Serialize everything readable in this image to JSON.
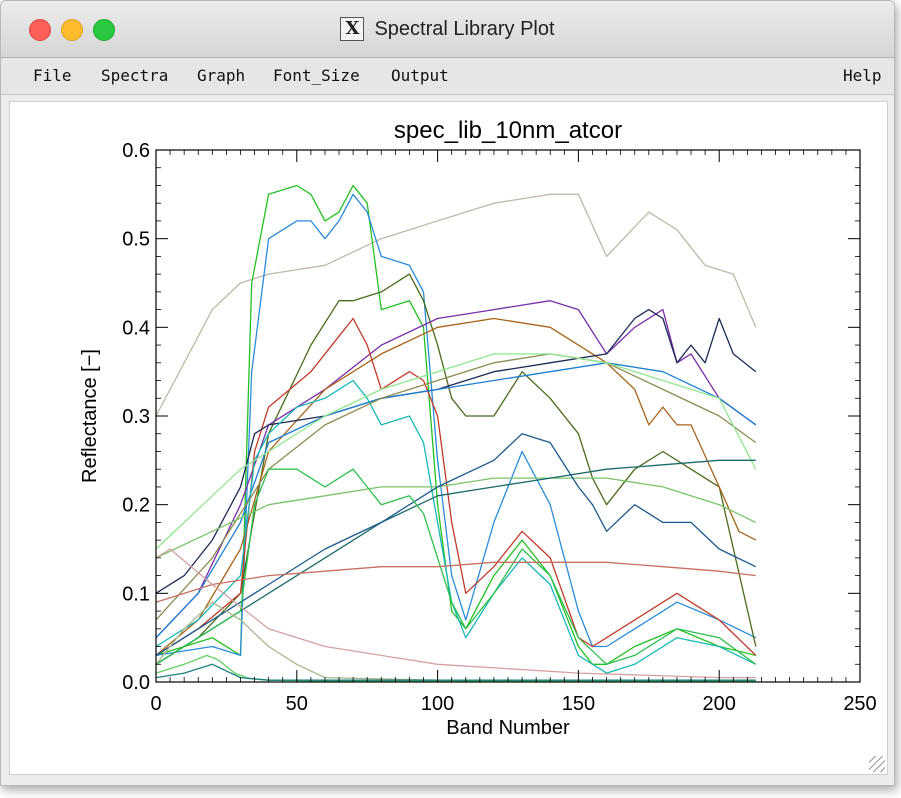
{
  "window": {
    "title": "Spectral Library Plot",
    "app_icon": "x11-icon"
  },
  "menu": {
    "file": "File",
    "spectra": "Spectra",
    "graph": "Graph",
    "font_size": "Font_Size",
    "output": "Output",
    "help": "Help"
  },
  "chart_data": {
    "type": "line",
    "title": "spec_lib_10nm_atcor",
    "xlabel": "Band Number",
    "ylabel": "Reflectance [−]",
    "xlim": [
      0,
      250
    ],
    "ylim": [
      0.0,
      0.6
    ],
    "x_ticks": [
      "0",
      "50",
      "100",
      "150",
      "200",
      "250"
    ],
    "y_ticks": [
      "0.0",
      "0.1",
      "0.2",
      "0.3",
      "0.4",
      "0.5",
      "0.6"
    ],
    "x_tick_values": [
      0,
      50,
      100,
      150,
      200,
      250
    ],
    "y_tick_values": [
      0.0,
      0.1,
      0.2,
      0.3,
      0.4,
      0.5,
      0.6
    ],
    "grid": false,
    "legend": "none",
    "series": [
      {
        "color": "#bfb8a8",
        "x": [
          0,
          10,
          20,
          30,
          40,
          60,
          80,
          100,
          120,
          140,
          150,
          160,
          175,
          185,
          195,
          205,
          213
        ],
        "y": [
          0.3,
          0.36,
          0.42,
          0.45,
          0.46,
          0.47,
          0.5,
          0.52,
          0.54,
          0.55,
          0.55,
          0.48,
          0.53,
          0.51,
          0.47,
          0.46,
          0.4
        ]
      },
      {
        "color": "#22c022",
        "x": [
          0,
          20,
          30,
          34,
          40,
          50,
          55,
          60,
          65,
          70,
          75,
          80,
          90,
          95,
          100,
          105,
          110,
          120,
          130,
          140,
          150,
          155,
          160,
          170,
          185,
          200,
          213
        ],
        "y": [
          0.03,
          0.05,
          0.03,
          0.45,
          0.55,
          0.56,
          0.55,
          0.52,
          0.53,
          0.56,
          0.54,
          0.42,
          0.43,
          0.4,
          0.2,
          0.08,
          0.06,
          0.12,
          0.16,
          0.12,
          0.04,
          0.02,
          0.02,
          0.04,
          0.06,
          0.04,
          0.03
        ]
      },
      {
        "color": "#2a8cd8",
        "x": [
          0,
          20,
          30,
          34,
          40,
          50,
          55,
          60,
          65,
          70,
          75,
          80,
          90,
          95,
          100,
          105,
          110,
          120,
          130,
          140,
          150,
          155,
          160,
          170,
          185,
          200,
          213
        ],
        "y": [
          0.03,
          0.04,
          0.03,
          0.35,
          0.5,
          0.52,
          0.52,
          0.5,
          0.52,
          0.55,
          0.53,
          0.48,
          0.47,
          0.44,
          0.25,
          0.12,
          0.07,
          0.18,
          0.26,
          0.2,
          0.08,
          0.04,
          0.04,
          0.06,
          0.09,
          0.07,
          0.05
        ]
      },
      {
        "color": "#4a6b1a",
        "x": [
          0,
          15,
          30,
          40,
          55,
          65,
          70,
          80,
          90,
          95,
          100,
          105,
          110,
          120,
          130,
          140,
          150,
          155,
          160,
          170,
          180,
          190,
          200,
          213
        ],
        "y": [
          0.02,
          0.05,
          0.1,
          0.28,
          0.38,
          0.43,
          0.43,
          0.44,
          0.46,
          0.43,
          0.38,
          0.32,
          0.3,
          0.3,
          0.35,
          0.32,
          0.28,
          0.23,
          0.2,
          0.24,
          0.26,
          0.24,
          0.22,
          0.04
        ]
      },
      {
        "color": "#7a2fa8",
        "x": [
          0,
          15,
          30,
          40,
          60,
          80,
          100,
          120,
          140,
          150,
          160,
          170,
          180,
          185,
          190,
          200,
          213
        ],
        "y": [
          0.05,
          0.1,
          0.2,
          0.29,
          0.33,
          0.38,
          0.41,
          0.42,
          0.43,
          0.42,
          0.37,
          0.4,
          0.42,
          0.36,
          0.37,
          0.32,
          0.29
        ]
      },
      {
        "color": "#a8631a",
        "x": [
          0,
          15,
          30,
          40,
          60,
          80,
          100,
          120,
          140,
          160,
          170,
          175,
          180,
          185,
          190,
          200,
          207,
          213
        ],
        "y": [
          0.03,
          0.07,
          0.15,
          0.26,
          0.33,
          0.37,
          0.4,
          0.41,
          0.4,
          0.36,
          0.33,
          0.29,
          0.31,
          0.29,
          0.29,
          0.22,
          0.17,
          0.16
        ]
      },
      {
        "color": "#c03a2a",
        "x": [
          0,
          15,
          30,
          35,
          40,
          55,
          65,
          70,
          75,
          80,
          90,
          95,
          100,
          105,
          110,
          120,
          130,
          140,
          150,
          155,
          160,
          170,
          185,
          200,
          213
        ],
        "y": [
          0.03,
          0.06,
          0.1,
          0.26,
          0.31,
          0.35,
          0.39,
          0.41,
          0.38,
          0.33,
          0.35,
          0.34,
          0.3,
          0.18,
          0.1,
          0.13,
          0.17,
          0.14,
          0.05,
          0.04,
          0.05,
          0.07,
          0.1,
          0.07,
          0.03
        ]
      },
      {
        "color": "#1c2a55",
        "x": [
          0,
          10,
          20,
          30,
          35,
          40,
          60,
          80,
          100,
          120,
          140,
          160,
          170,
          175,
          180,
          185,
          190,
          195,
          200,
          205,
          213
        ],
        "y": [
          0.1,
          0.12,
          0.16,
          0.22,
          0.28,
          0.29,
          0.3,
          0.32,
          0.33,
          0.35,
          0.36,
          0.37,
          0.41,
          0.42,
          0.41,
          0.36,
          0.38,
          0.36,
          0.41,
          0.37,
          0.35
        ]
      },
      {
        "color": "#1c7fd0",
        "x": [
          0,
          15,
          30,
          40,
          60,
          80,
          100,
          120,
          140,
          160,
          180,
          200,
          213
        ],
        "y": [
          0.05,
          0.1,
          0.18,
          0.27,
          0.3,
          0.32,
          0.33,
          0.34,
          0.35,
          0.36,
          0.35,
          0.32,
          0.29
        ]
      },
      {
        "color": "#18b8b8",
        "x": [
          0,
          15,
          30,
          35,
          40,
          50,
          60,
          65,
          70,
          75,
          80,
          90,
          95,
          100,
          105,
          110,
          120,
          130,
          140,
          150,
          160,
          170,
          185,
          200,
          213
        ],
        "y": [
          0.04,
          0.07,
          0.12,
          0.25,
          0.28,
          0.31,
          0.32,
          0.33,
          0.34,
          0.32,
          0.29,
          0.3,
          0.27,
          0.18,
          0.09,
          0.05,
          0.1,
          0.14,
          0.11,
          0.03,
          0.01,
          0.02,
          0.05,
          0.04,
          0.02
        ]
      },
      {
        "color": "#8c8c50",
        "x": [
          0,
          20,
          40,
          60,
          80,
          100,
          120,
          140,
          160,
          180,
          200,
          213
        ],
        "y": [
          0.07,
          0.14,
          0.24,
          0.29,
          0.32,
          0.34,
          0.36,
          0.37,
          0.36,
          0.33,
          0.3,
          0.27
        ]
      },
      {
        "color": "#8fe88f",
        "x": [
          0,
          10,
          20,
          30,
          40,
          60,
          80,
          100,
          120,
          140,
          160,
          180,
          200,
          213
        ],
        "y": [
          0.15,
          0.18,
          0.21,
          0.24,
          0.26,
          0.3,
          0.33,
          0.35,
          0.37,
          0.37,
          0.36,
          0.34,
          0.32,
          0.24
        ]
      },
      {
        "color": "#7ac46a",
        "x": [
          0,
          20,
          40,
          60,
          80,
          100,
          120,
          140,
          160,
          180,
          200,
          213
        ],
        "y": [
          0.14,
          0.17,
          0.2,
          0.21,
          0.22,
          0.22,
          0.23,
          0.23,
          0.23,
          0.22,
          0.2,
          0.18
        ]
      },
      {
        "color": "#1a6a6a",
        "x": [
          0,
          20,
          40,
          60,
          80,
          100,
          120,
          140,
          160,
          180,
          200,
          213
        ],
        "y": [
          0.02,
          0.06,
          0.1,
          0.14,
          0.18,
          0.21,
          0.22,
          0.23,
          0.24,
          0.245,
          0.25,
          0.25
        ]
      },
      {
        "color": "#1a5a8a",
        "x": [
          0,
          20,
          40,
          60,
          80,
          100,
          120,
          130,
          140,
          150,
          155,
          160,
          170,
          180,
          190,
          200,
          213
        ],
        "y": [
          0.03,
          0.07,
          0.11,
          0.15,
          0.18,
          0.22,
          0.25,
          0.28,
          0.27,
          0.22,
          0.2,
          0.17,
          0.2,
          0.18,
          0.18,
          0.15,
          0.13
        ]
      },
      {
        "color": "#30c050",
        "x": [
          0,
          20,
          30,
          35,
          40,
          50,
          60,
          65,
          70,
          75,
          80,
          90,
          95,
          100,
          105,
          110,
          120,
          130,
          140,
          150,
          160,
          170,
          185,
          200,
          213
        ],
        "y": [
          0.02,
          0.06,
          0.08,
          0.2,
          0.24,
          0.24,
          0.22,
          0.23,
          0.24,
          0.22,
          0.2,
          0.21,
          0.19,
          0.14,
          0.09,
          0.06,
          0.1,
          0.15,
          0.12,
          0.05,
          0.02,
          0.03,
          0.06,
          0.05,
          0.02
        ]
      },
      {
        "color": "#c87060",
        "x": [
          0,
          20,
          40,
          60,
          80,
          100,
          120,
          140,
          160,
          180,
          200,
          213
        ],
        "y": [
          0.09,
          0.11,
          0.12,
          0.125,
          0.13,
          0.13,
          0.135,
          0.135,
          0.135,
          0.13,
          0.125,
          0.12
        ]
      },
      {
        "color": "#d4a0a0",
        "x": [
          0,
          5,
          20,
          40,
          60,
          100,
          150,
          200,
          213
        ],
        "y": [
          0.14,
          0.15,
          0.11,
          0.06,
          0.04,
          0.02,
          0.01,
          0.005,
          0.005
        ]
      },
      {
        "color": "#a8b890",
        "x": [
          0,
          10,
          20,
          30,
          40,
          50,
          60,
          100,
          150,
          213
        ],
        "y": [
          0.02,
          0.06,
          0.09,
          0.07,
          0.04,
          0.02,
          0.005,
          0.002,
          0.001,
          0.001
        ]
      },
      {
        "color": "#60d060",
        "x": [
          0,
          10,
          18,
          22,
          28,
          33,
          40,
          60,
          100,
          150,
          213
        ],
        "y": [
          0.01,
          0.02,
          0.03,
          0.025,
          0.01,
          0.004,
          0.002,
          0.001,
          0.001,
          0.001,
          0.001
        ]
      },
      {
        "color": "#1a8080",
        "x": [
          0,
          10,
          20,
          30,
          40,
          100,
          213
        ],
        "y": [
          0.005,
          0.01,
          0.02,
          0.005,
          0.002,
          0.002,
          0.002
        ]
      }
    ]
  }
}
